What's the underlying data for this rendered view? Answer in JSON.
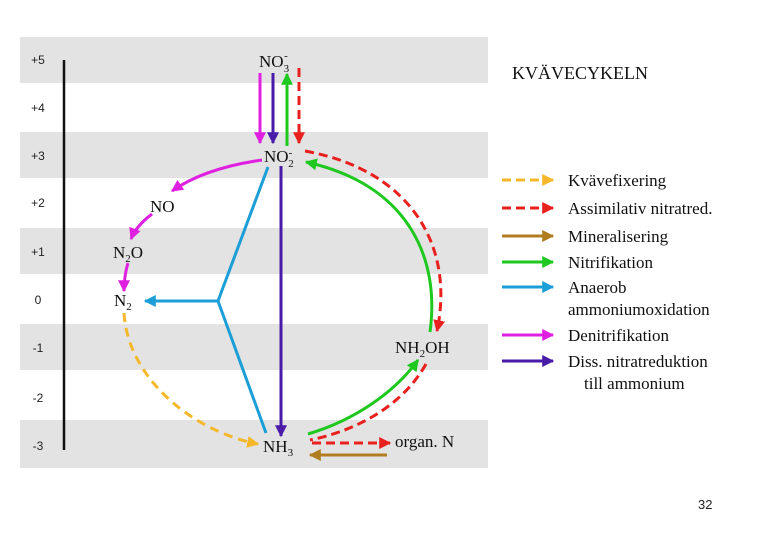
{
  "title": "KVÄVECYKELN",
  "page_number": "32",
  "colors": {
    "band": "#e3e3e3",
    "fixation": "#f5b82a",
    "assimilative": "#e8201e",
    "mineralization": "#b07d20",
    "nitrification": "#1ec81e",
    "anammox": "#1c9ed6",
    "denitrification": "#e020e0",
    "dnra": "#4a1aa8"
  },
  "oxidation_levels": [
    "+5",
    "+4",
    "+3",
    "+2",
    "+1",
    "0",
    "-1",
    "-2",
    "-3"
  ],
  "species": {
    "no3": {
      "main": "NO",
      "sub": "3",
      "sup": "-"
    },
    "no2": {
      "main": "NO",
      "sub": "2",
      "sup": "-"
    },
    "no": {
      "main": "NO"
    },
    "n2o": {
      "pre": "N",
      "sub": "2",
      "post": "O"
    },
    "n2": {
      "main": "N",
      "sub": "2"
    },
    "nh2oh": {
      "pre": "NH",
      "sub": "2",
      "post": "OH"
    },
    "nh3": {
      "main": "NH",
      "sub": "3"
    },
    "organ_n": "organ. N"
  },
  "legend": [
    {
      "label": "Kvävefixering",
      "style": "dashed",
      "color_key": "fixation"
    },
    {
      "label": "Assimilativ nitratred.",
      "style": "dashed",
      "color_key": "assimilative"
    },
    {
      "label": "Mineralisering",
      "style": "solid",
      "color_key": "mineralization"
    },
    {
      "label": "Nitrifikation",
      "style": "solid",
      "color_key": "nitrification"
    },
    {
      "label": "Anaerob",
      "label2": "ammoniumoxidation",
      "style": "solid",
      "color_key": "anammox"
    },
    {
      "label": "Denitrifikation",
      "style": "solid",
      "color_key": "denitrification"
    },
    {
      "label": "Diss. nitratreduktion",
      "label2": "till ammonium",
      "style": "solid",
      "color_key": "dnra"
    }
  ]
}
